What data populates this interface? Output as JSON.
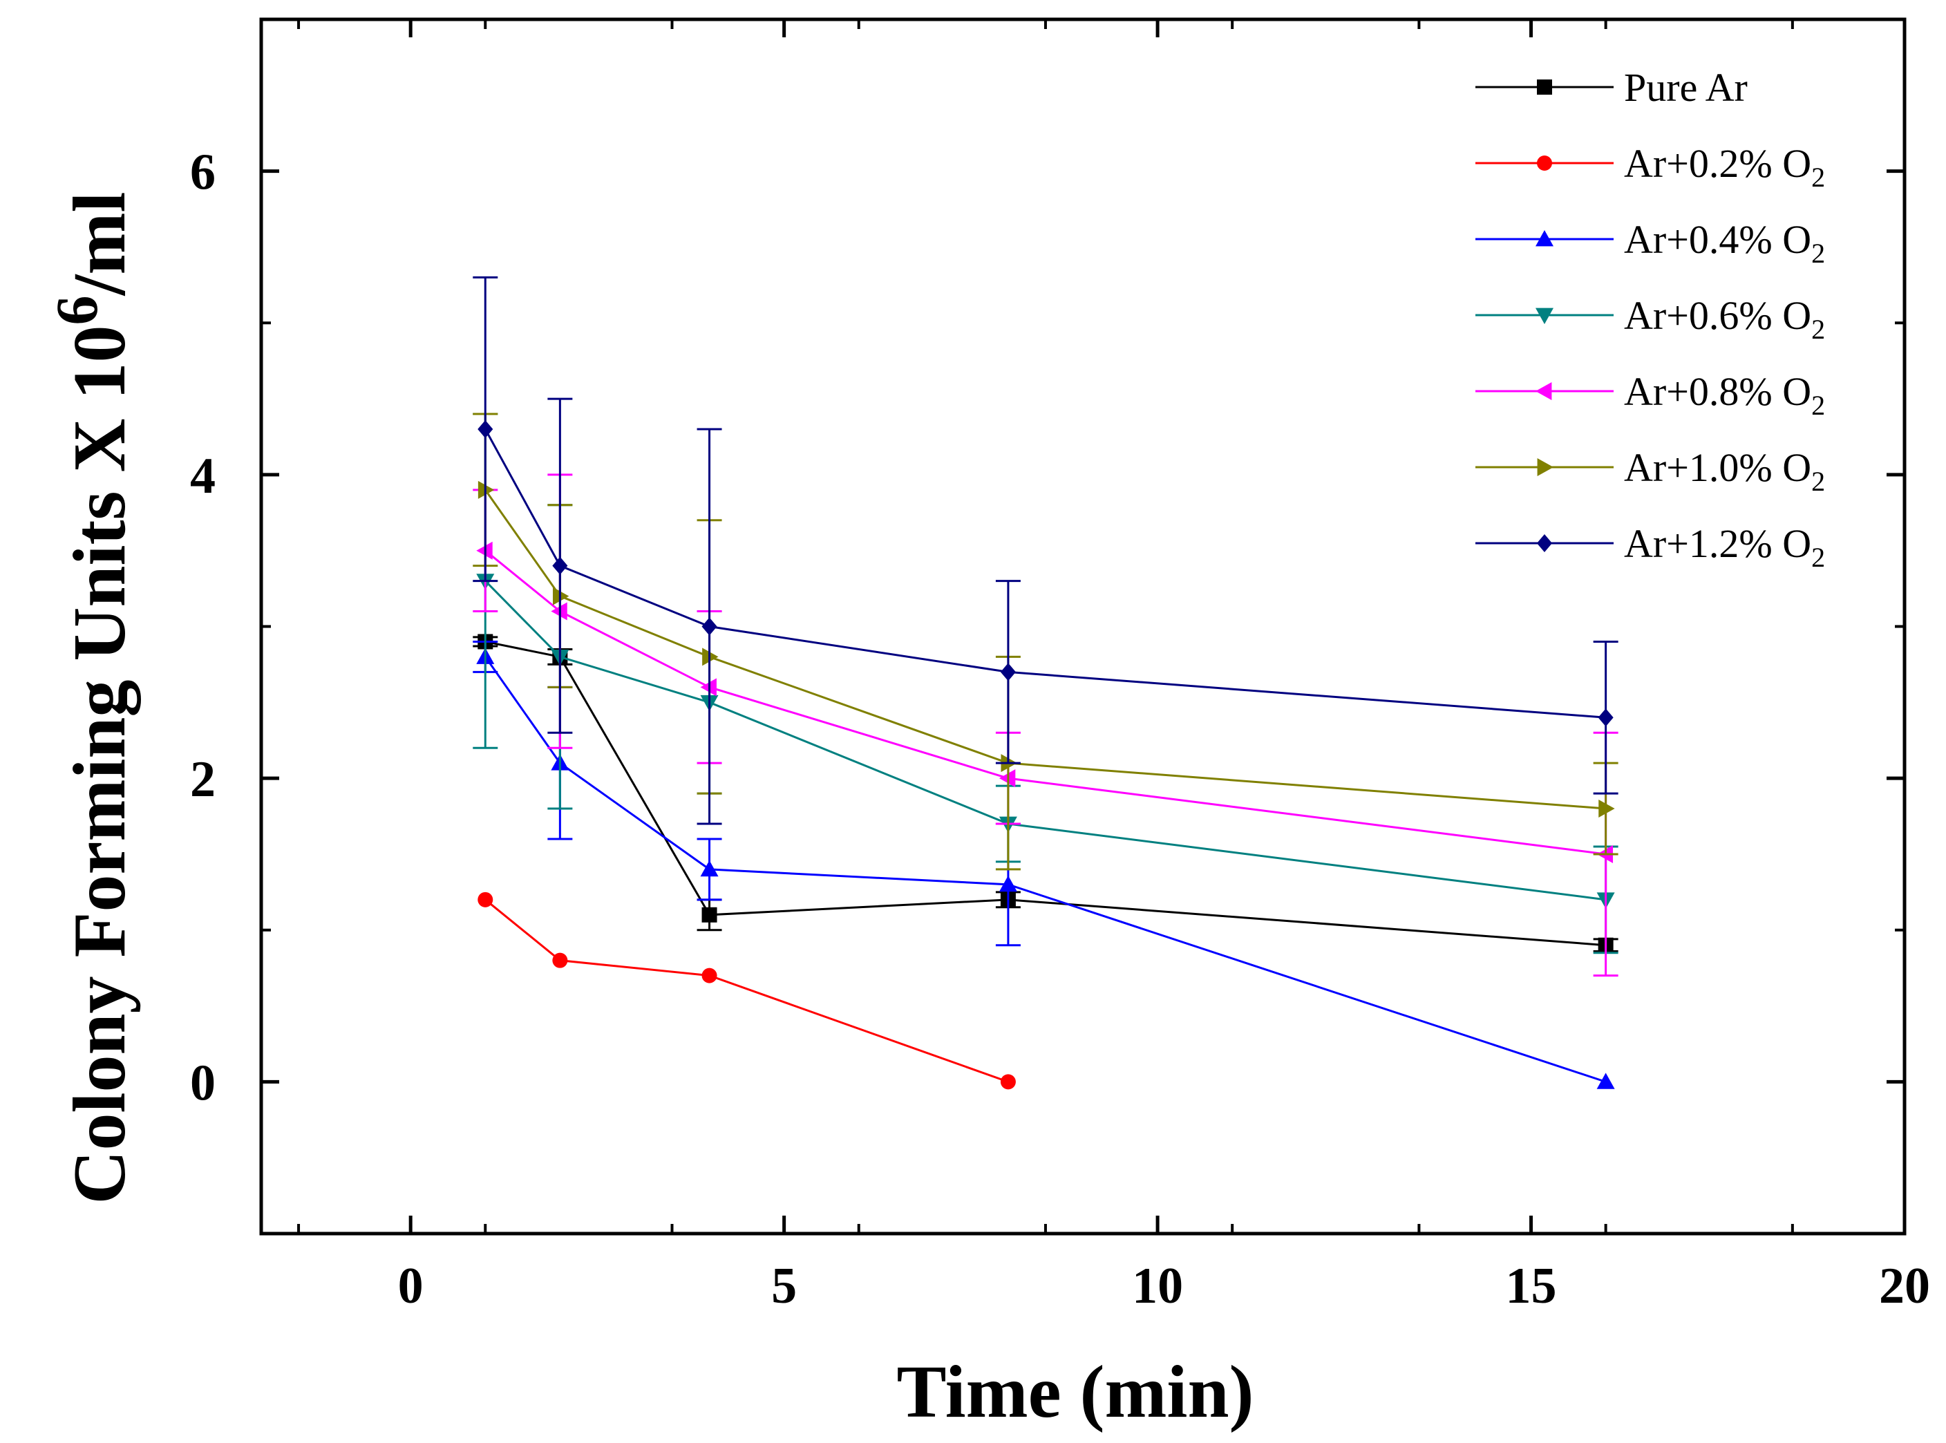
{
  "chart_data": {
    "type": "line",
    "title": "",
    "xlabel": "Time (min)",
    "ylabel": {
      "main": "Colony Forming Units X 10",
      "exponent": "6",
      "unit": "/ml"
    },
    "xlim": [
      -2,
      20
    ],
    "ylim": [
      -1,
      7
    ],
    "x_ticks": [
      0,
      5,
      10,
      15,
      20
    ],
    "x_tick_labels": [
      "0",
      "5",
      "10",
      "15",
      "20"
    ],
    "y_ticks": [
      0,
      2,
      4,
      6
    ],
    "y_tick_labels": [
      "0",
      "2",
      "4",
      "6"
    ],
    "grid": false,
    "legend_position": "top-right",
    "x": [
      1,
      2,
      4,
      8,
      16
    ],
    "series": [
      {
        "name": "Pure Ar",
        "legend_text": "Pure Ar",
        "legend_subscript": "",
        "color": "#000000",
        "marker": "square",
        "x": [
          1,
          2,
          4,
          8,
          16
        ],
        "values": [
          2.9,
          2.8,
          1.1,
          1.2,
          0.9
        ],
        "errors": [
          0.03,
          0.05,
          0.1,
          0.05,
          0.04
        ]
      },
      {
        "name": "Ar+0.2% O2",
        "legend_text": "Ar+0.2% O",
        "legend_subscript": "2",
        "color": "#ff0000",
        "marker": "circle",
        "x": [
          1,
          2,
          4,
          8
        ],
        "values": [
          1.2,
          0.8,
          0.7,
          0.0
        ],
        "errors": [
          0,
          0,
          0,
          0
        ]
      },
      {
        "name": "Ar+0.4% O2",
        "legend_text": "Ar+0.4% O",
        "legend_subscript": "2",
        "color": "#0000ff",
        "marker": "triangle-up",
        "x": [
          1,
          2,
          4,
          8,
          16
        ],
        "values": [
          2.8,
          2.1,
          1.4,
          1.3,
          0.0
        ],
        "errors": [
          0.1,
          0.5,
          0.2,
          0.4,
          0
        ]
      },
      {
        "name": "Ar+0.6% O2",
        "legend_text": "Ar+0.6% O",
        "legend_subscript": "2",
        "color": "#008080",
        "marker": "triangle-down",
        "x": [
          1,
          2,
          4,
          8,
          16
        ],
        "values": [
          3.3,
          2.8,
          2.5,
          1.7,
          1.2
        ],
        "errors": [
          1.1,
          1.0,
          0.6,
          0.25,
          0.35
        ]
      },
      {
        "name": "Ar+0.8% O2",
        "legend_text": "Ar+0.8% O",
        "legend_subscript": "2",
        "color": "#ff00ff",
        "marker": "triangle-left",
        "x": [
          1,
          2,
          4,
          8,
          16
        ],
        "values": [
          3.5,
          3.1,
          2.6,
          2.0,
          1.5
        ],
        "errors": [
          0.4,
          0.9,
          0.5,
          0.3,
          0.8
        ]
      },
      {
        "name": "Ar+1.0% O2",
        "legend_text": "Ar+1.0% O",
        "legend_subscript": "2",
        "color": "#808000",
        "marker": "triangle-right",
        "x": [
          1,
          2,
          4,
          8,
          16
        ],
        "values": [
          3.9,
          3.2,
          2.8,
          2.1,
          1.8
        ],
        "errors": [
          0.5,
          0.6,
          0.9,
          0.7,
          0.3
        ]
      },
      {
        "name": "Ar+1.2% O2",
        "legend_text": "Ar+1.2% O",
        "legend_subscript": "2",
        "color": "#000080",
        "marker": "diamond",
        "x": [
          1,
          2,
          4,
          8,
          16
        ],
        "values": [
          4.3,
          3.4,
          3.0,
          2.7,
          2.4
        ],
        "errors": [
          1.0,
          1.1,
          1.3,
          0.6,
          0.5
        ]
      }
    ]
  }
}
